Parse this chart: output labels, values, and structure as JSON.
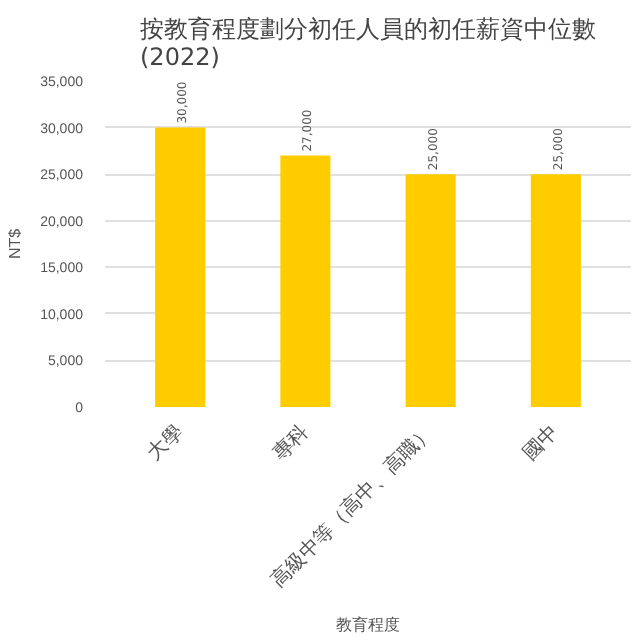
{
  "chart_data": {
    "type": "bar",
    "title": "按教育程度劃分初任人員的初任薪資中位數\n(2022)",
    "xlabel": "教育程度",
    "ylabel": "NT$",
    "categories": [
      "大學",
      "專科",
      "高級中等（高中、高職）",
      "國中"
    ],
    "values": [
      30000,
      27000,
      25000,
      25000
    ],
    "color": "#ffcc00",
    "value_labels": [
      "30,000",
      "27,000",
      "25,000",
      "25,000"
    ],
    "ylim": [
      0,
      35000
    ],
    "yticks": [
      {
        "value": 0,
        "label": "0"
      },
      {
        "value": 5000,
        "label": "5,000"
      },
      {
        "value": 10000,
        "label": "10,000"
      },
      {
        "value": 15000,
        "label": "15,000"
      },
      {
        "value": 20000,
        "label": "20,000"
      },
      {
        "value": 25000,
        "label": "25,000"
      },
      {
        "value": 30000,
        "label": "30,000"
      },
      {
        "value": 35000,
        "label": "35,000"
      }
    ],
    "grid": "y"
  }
}
